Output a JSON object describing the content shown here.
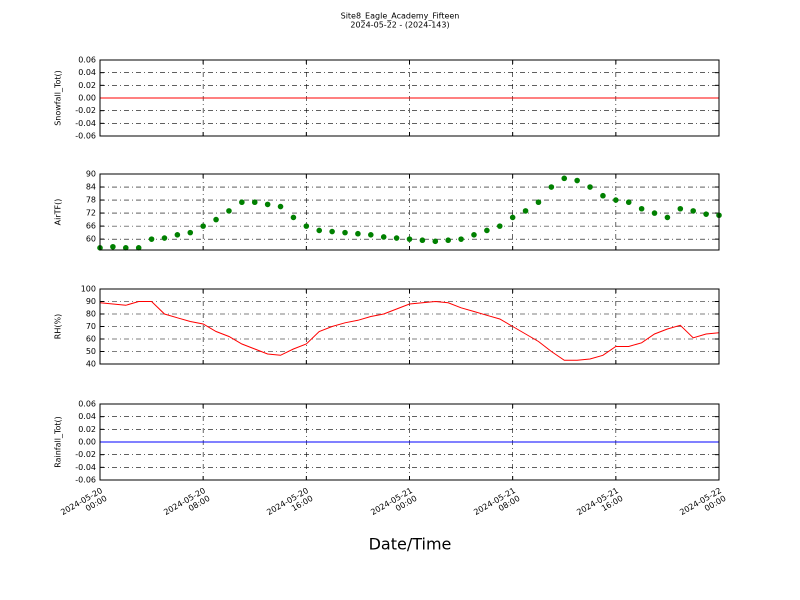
{
  "title": "Site8_Eagle_Academy_Fifteen",
  "subtitle": "2024-05-22 - (2024-143)",
  "x_label": "Date/Time",
  "chart_data": [
    {
      "type": "line",
      "y_label": "Snowfall_Tot()",
      "grid": true,
      "x": [
        "2024-05-20 00:00",
        "2024-05-22 00:00"
      ],
      "values": [
        0,
        0
      ],
      "color": "#ff0000",
      "ylim": [
        -0.06,
        0.06
      ],
      "yticks": [
        -0.06,
        -0.04,
        -0.02,
        {
          "value": 0,
          "label": "0.00"
        },
        0.02,
        0.04,
        0.06
      ]
    },
    {
      "type": "scatter",
      "y_label": "AirTF()",
      "grid": true,
      "x": [
        "2024-05-20 00:00",
        "2024-05-20 01:00",
        "2024-05-20 02:00",
        "2024-05-20 03:00",
        "2024-05-20 04:00",
        "2024-05-20 05:00",
        "2024-05-20 06:00",
        "2024-05-20 07:00",
        "2024-05-20 08:00",
        "2024-05-20 09:00",
        "2024-05-20 10:00",
        "2024-05-20 11:00",
        "2024-05-20 12:00",
        "2024-05-20 13:00",
        "2024-05-20 14:00",
        "2024-05-20 15:00",
        "2024-05-20 16:00",
        "2024-05-20 17:00",
        "2024-05-20 18:00",
        "2024-05-20 19:00",
        "2024-05-20 20:00",
        "2024-05-20 21:00",
        "2024-05-20 22:00",
        "2024-05-20 23:00",
        "2024-05-21 00:00",
        "2024-05-21 01:00",
        "2024-05-21 02:00",
        "2024-05-21 03:00",
        "2024-05-21 04:00",
        "2024-05-21 05:00",
        "2024-05-21 06:00",
        "2024-05-21 07:00",
        "2024-05-21 08:00",
        "2024-05-21 09:00",
        "2024-05-21 10:00",
        "2024-05-21 11:00",
        "2024-05-21 12:00",
        "2024-05-21 13:00",
        "2024-05-21 14:00",
        "2024-05-21 15:00",
        "2024-05-21 16:00",
        "2024-05-21 17:00",
        "2024-05-21 18:00",
        "2024-05-21 19:00",
        "2024-05-21 20:00",
        "2024-05-21 21:00",
        "2024-05-21 22:00",
        "2024-05-21 23:00",
        "2024-05-22 00:00"
      ],
      "values": [
        56,
        56.5,
        56,
        56,
        60,
        60.5,
        62,
        63,
        66,
        69,
        73,
        77,
        77,
        76,
        75,
        70,
        66,
        64,
        63.5,
        63,
        62.5,
        62,
        61,
        60.5,
        60,
        59.5,
        59,
        59.5,
        60,
        62,
        64,
        66,
        70,
        73,
        77,
        84,
        88,
        87,
        84,
        80,
        78,
        77,
        74,
        72,
        70,
        74,
        73,
        71.5,
        71
      ],
      "color": "#008000",
      "ylim": [
        55,
        90
      ],
      "yticks": [
        60,
        66,
        72,
        78,
        84,
        90
      ]
    },
    {
      "type": "line",
      "y_label": "RH(%)",
      "grid": true,
      "x": [
        "2024-05-20 00:00",
        "2024-05-20 01:00",
        "2024-05-20 02:00",
        "2024-05-20 03:00",
        "2024-05-20 04:00",
        "2024-05-20 05:00",
        "2024-05-20 06:00",
        "2024-05-20 07:00",
        "2024-05-20 08:00",
        "2024-05-20 09:00",
        "2024-05-20 10:00",
        "2024-05-20 11:00",
        "2024-05-20 12:00",
        "2024-05-20 13:00",
        "2024-05-20 14:00",
        "2024-05-20 15:00",
        "2024-05-20 16:00",
        "2024-05-20 17:00",
        "2024-05-20 18:00",
        "2024-05-20 19:00",
        "2024-05-20 20:00",
        "2024-05-20 21:00",
        "2024-05-20 22:00",
        "2024-05-20 23:00",
        "2024-05-21 00:00",
        "2024-05-21 01:00",
        "2024-05-21 02:00",
        "2024-05-21 03:00",
        "2024-05-21 04:00",
        "2024-05-21 05:00",
        "2024-05-21 06:00",
        "2024-05-21 07:00",
        "2024-05-21 08:00",
        "2024-05-21 09:00",
        "2024-05-21 10:00",
        "2024-05-21 11:00",
        "2024-05-21 12:00",
        "2024-05-21 13:00",
        "2024-05-21 14:00",
        "2024-05-21 15:00",
        "2024-05-21 16:00",
        "2024-05-21 17:00",
        "2024-05-21 18:00",
        "2024-05-21 19:00",
        "2024-05-21 20:00",
        "2024-05-21 21:00",
        "2024-05-21 22:00",
        "2024-05-21 23:00",
        "2024-05-22 00:00"
      ],
      "values": [
        89,
        88,
        87,
        90,
        90,
        80,
        77,
        74,
        72,
        66,
        62,
        56,
        52,
        48,
        47,
        52,
        56,
        66,
        70,
        73,
        75,
        78,
        80,
        84,
        88,
        89,
        90,
        89,
        85,
        82,
        79,
        76,
        70,
        64,
        58,
        50,
        43,
        43,
        44,
        47,
        54,
        54,
        57,
        64,
        68,
        71,
        61,
        64,
        65
      ],
      "color": "#ff0000",
      "ylim": [
        40,
        100
      ],
      "yticks": [
        40,
        50,
        60,
        70,
        80,
        90,
        100
      ]
    },
    {
      "type": "line",
      "y_label": "Rainfall_Tot()",
      "grid": true,
      "x": [
        "2024-05-20 00:00",
        "2024-05-22 00:00"
      ],
      "values": [
        0,
        0
      ],
      "color": "#0000ff",
      "ylim": [
        -0.06,
        0.06
      ],
      "yticks": [
        -0.06,
        -0.04,
        -0.02,
        {
          "value": 0,
          "label": "0.00"
        },
        0.02,
        0.04,
        0.06
      ],
      "xlim": [
        "2024-05-20 00:00",
        "2024-05-22 00:00"
      ],
      "xticks": [
        {
          "value": "2024-05-20 00:00",
          "label": "2024-05-20\n00:00"
        },
        {
          "value": "2024-05-20 08:00",
          "label": "2024-05-20\n08:00"
        },
        {
          "value": "2024-05-20 16:00",
          "label": "2024-05-20\n16:00"
        },
        {
          "value": "2024-05-21 00:00",
          "label": "2024-05-21\n00:00"
        },
        {
          "value": "2024-05-21 08:00",
          "label": "2024-05-21\n08:00"
        },
        {
          "value": "2024-05-21 16:00",
          "label": "2024-05-21\n16:00"
        },
        {
          "value": "2024-05-22 00:00",
          "label": "2024-05-22\n00:00"
        }
      ]
    }
  ]
}
